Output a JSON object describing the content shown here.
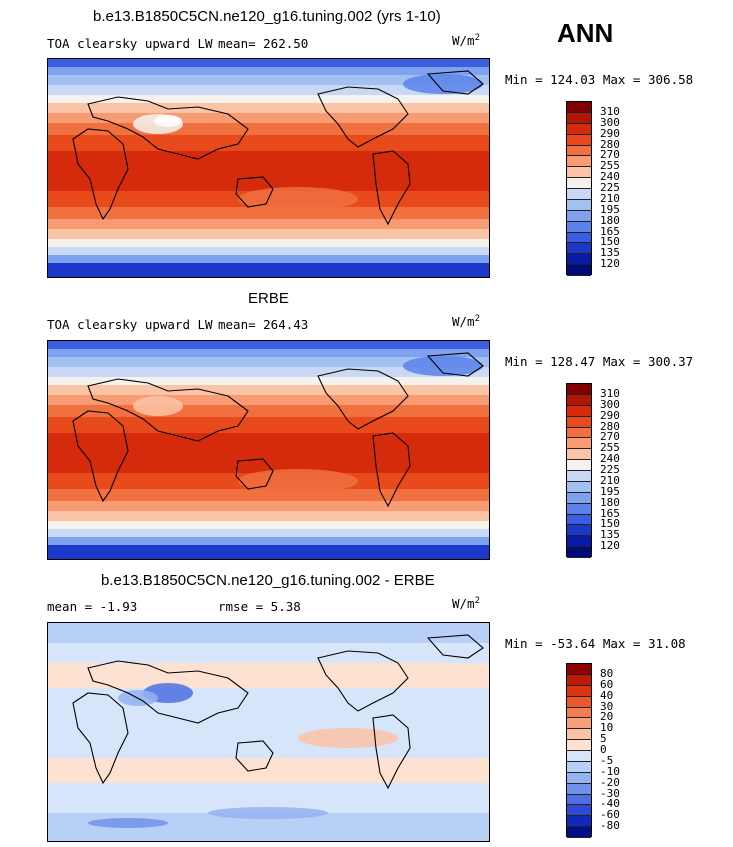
{
  "season": "ANN",
  "units_base": "W/m",
  "units_exp": "2",
  "panels": [
    {
      "title": "b.e13.B1850C5CN.ne120_g16.tuning.002 (yrs 1-10)",
      "left_label": "TOA clearsky upward LW",
      "stat_text": "mean= 262.50",
      "minmax": "Min = 124.03 Max = 306.58",
      "levels": [
        "310",
        "300",
        "290",
        "280",
        "270",
        "255",
        "240",
        "225",
        "210",
        "195",
        "180",
        "165",
        "150",
        "135",
        "120"
      ]
    },
    {
      "title": "ERBE",
      "left_label": "TOA clearsky upward LW",
      "stat_text": "mean= 264.43",
      "minmax": "Min = 128.47 Max = 300.37",
      "levels": [
        "310",
        "300",
        "290",
        "280",
        "270",
        "255",
        "240",
        "225",
        "210",
        "195",
        "180",
        "165",
        "150",
        "135",
        "120"
      ]
    },
    {
      "title": "b.e13.B1850C5CN.ne120_g16.tuning.002 - ERBE",
      "left_label": "mean =   -1.93",
      "stat_text": "rmse =    5.38",
      "minmax": "Min = -53.64 Max =  31.08",
      "levels": [
        "80",
        "60",
        "40",
        "30",
        "20",
        "10",
        "5",
        "0",
        "-5",
        "-10",
        "-20",
        "-30",
        "-40",
        "-60",
        "-80"
      ]
    }
  ],
  "colors": {
    "abs_scale": [
      "#7f0000",
      "#b01505",
      "#d52b0c",
      "#e84a1c",
      "#f07040",
      "#f89a72",
      "#fbc4a6",
      "#f5f2ee",
      "#c9d9f5",
      "#a3c0f2",
      "#7ea2ef",
      "#5b82ea",
      "#3a5edf",
      "#1c38c9",
      "#081aa3",
      "#000a78"
    ],
    "diff_scale": [
      "#8b0000",
      "#bf1a05",
      "#dc3510",
      "#ea5a2a",
      "#f27e52",
      "#f7a07c",
      "#fbc2a5",
      "#fde2d2",
      "#d7e5fa",
      "#b8cff6",
      "#95b3f0",
      "#7092ea",
      "#4e70e2",
      "#2c4ad4",
      "#1228b8",
      "#000f86"
    ]
  }
}
